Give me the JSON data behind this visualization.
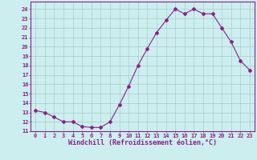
{
  "x": [
    0,
    1,
    2,
    3,
    4,
    5,
    6,
    7,
    8,
    9,
    10,
    11,
    12,
    13,
    14,
    15,
    16,
    17,
    18,
    19,
    20,
    21,
    22,
    23
  ],
  "y": [
    13.2,
    13.0,
    12.5,
    12.0,
    12.0,
    11.5,
    11.4,
    11.4,
    12.0,
    13.8,
    15.8,
    18.0,
    19.8,
    21.5,
    22.8,
    24.0,
    23.5,
    24.0,
    23.5,
    23.5,
    22.0,
    20.5,
    18.5,
    17.5
  ],
  "line_color": "#882288",
  "marker": "D",
  "marker_size": 2.0,
  "bg_color": "#cceeee",
  "grid_color": "#aacccc",
  "xlabel": "Windchill (Refroidissement éolien,°C)",
  "xlim": [
    -0.5,
    23.5
  ],
  "ylim": [
    11.0,
    24.8
  ],
  "yticks": [
    11,
    12,
    13,
    14,
    15,
    16,
    17,
    18,
    19,
    20,
    21,
    22,
    23,
    24
  ],
  "xticks": [
    0,
    1,
    2,
    3,
    4,
    5,
    6,
    7,
    8,
    9,
    10,
    11,
    12,
    13,
    14,
    15,
    16,
    17,
    18,
    19,
    20,
    21,
    22,
    23
  ],
  "tick_fontsize": 5.0,
  "xlabel_fontsize": 6.0,
  "line_width": 0.8
}
